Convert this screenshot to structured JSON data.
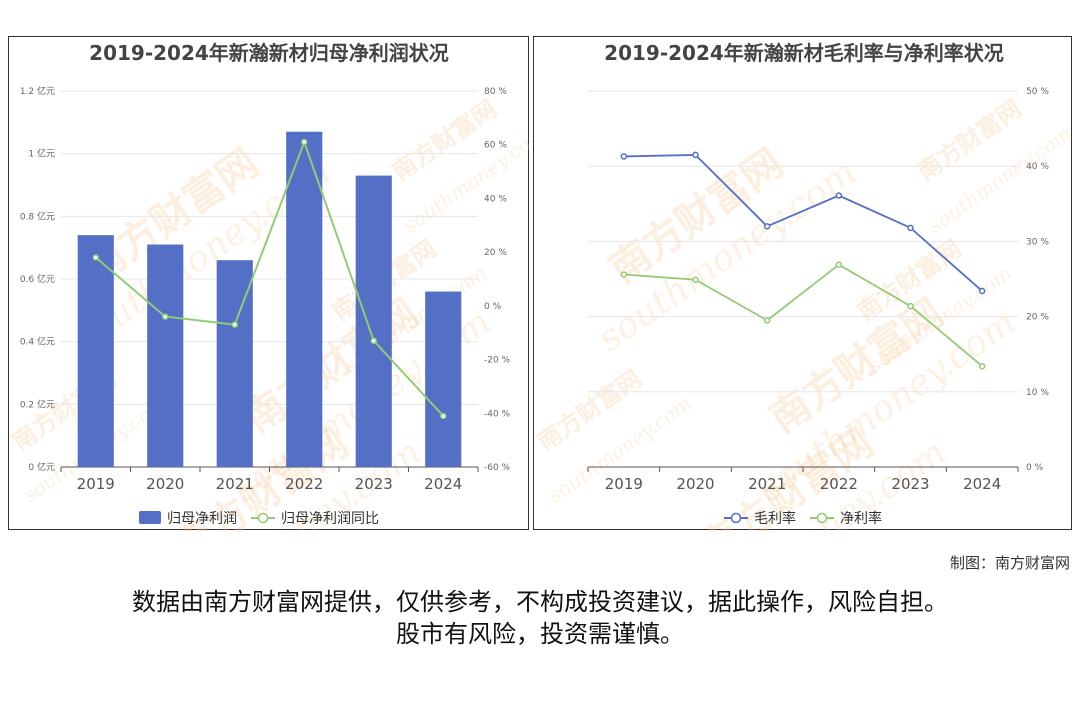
{
  "colors": {
    "bar": "#5470c6",
    "line_green": "#91cc75",
    "line_blue": "#5470c6",
    "grid": "#e6e6e6",
    "axis": "#555555",
    "watermark": "#f5c78e"
  },
  "watermark": {
    "cn": "南方财富网",
    "en": "southmoney.com"
  },
  "chart_data": [
    {
      "type": "bar",
      "title": "2019-2024年新瀚新材归母净利润状况",
      "categories": [
        "2019",
        "2020",
        "2021",
        "2022",
        "2023",
        "2024"
      ],
      "series": [
        {
          "name": "归母净利润",
          "type": "bar",
          "axis": "left",
          "values": [
            0.74,
            0.71,
            0.66,
            1.07,
            0.93,
            0.56
          ]
        },
        {
          "name": "归母净利润同比",
          "type": "line",
          "axis": "right",
          "values": [
            18,
            -4,
            -7,
            61,
            -13,
            -41
          ]
        }
      ],
      "yaxis_left": {
        "unit": "亿元",
        "ylim": [
          0,
          1.2
        ],
        "ticks": [
          "0 亿元",
          "0.2 亿元",
          "0.4 亿元",
          "0.6 亿元",
          "0.8 亿元",
          "1 亿元",
          "1.2 亿元"
        ]
      },
      "yaxis_right": {
        "unit": "%",
        "ylim": [
          -60,
          80
        ],
        "ticks": [
          "-60 %",
          "-40 %",
          "-20 %",
          "0 %",
          "20 %",
          "40 %",
          "60 %",
          "80 %"
        ]
      },
      "grid": true,
      "legend": "bottom"
    },
    {
      "type": "line",
      "title": "2019-2024年新瀚新材毛利率与净利率状况",
      "categories": [
        "2019",
        "2020",
        "2021",
        "2022",
        "2023",
        "2024"
      ],
      "series": [
        {
          "name": "毛利率",
          "values": [
            41.3,
            41.5,
            32.0,
            36.1,
            31.8,
            23.4
          ]
        },
        {
          "name": "净利率",
          "values": [
            25.6,
            24.9,
            19.5,
            26.9,
            21.4,
            13.4
          ]
        }
      ],
      "yaxis_right": {
        "unit": "%",
        "ylim": [
          0,
          50
        ],
        "ticks": [
          "0 %",
          "10 %",
          "20 %",
          "30 %",
          "40 %",
          "50 %"
        ]
      },
      "grid": true,
      "legend": "bottom"
    }
  ],
  "credit": "制图：南方财富网",
  "disclaimer_line1": "数据由南方财富网提供，仅供参考，不构成投资建议，据此操作，风险自担。",
  "disclaimer_line2": "股市有风险，投资需谨慎。"
}
